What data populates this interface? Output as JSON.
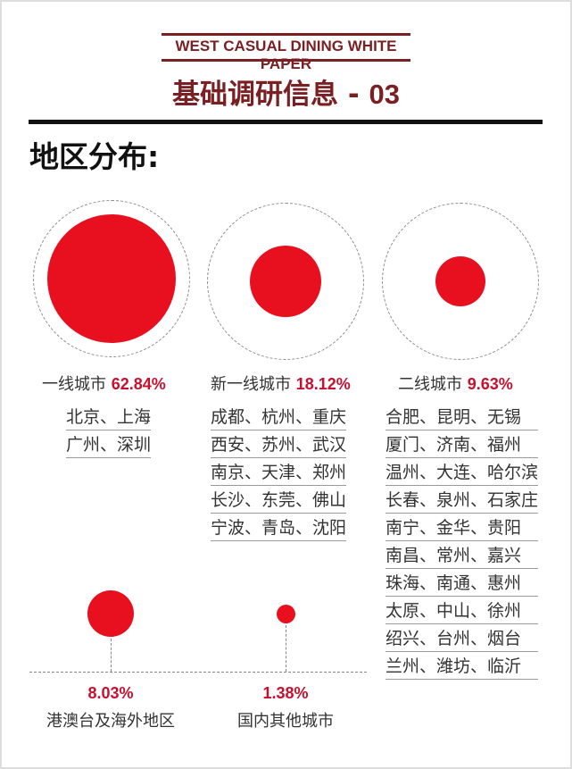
{
  "header": {
    "title": "WEST CASUAL DINING WHITE PAPER",
    "subtitle": "基础调研信息 - ",
    "subtitle_num": "03"
  },
  "section_title": "地区分布:",
  "tiers": [
    {
      "name": "一线城市",
      "percent": "62.84%",
      "cities": [
        "北京、上海",
        "广州、深圳"
      ]
    },
    {
      "name": "新一线城市",
      "percent": "18.12%",
      "cities": [
        "成都、杭州、重庆",
        "西安、苏州、武汉",
        "南京、天津、郑州",
        "长沙、东莞、佛山",
        "宁波、青岛、沈阳"
      ]
    },
    {
      "name": "二线城市",
      "percent": "9.63%",
      "cities": [
        "合肥、昆明、无锡",
        "厦门、济南、福州",
        "温州、大连、哈尔滨",
        "长春、泉州、石家庄",
        "南宁、金华、贵阳",
        "南昌、常州、嘉兴",
        "珠海、南通、惠州",
        "太原、中山、徐州",
        "绍兴、台州、烟台",
        "兰州、潍坊、临沂"
      ]
    }
  ],
  "others": [
    {
      "percent": "8.03%",
      "name": "港澳台及海外地区"
    },
    {
      "percent": "1.38%",
      "name": "国内其他城市"
    }
  ],
  "colors": {
    "accent": "#e8101f",
    "header": "#7a1f22",
    "percent": "#c8102e"
  }
}
